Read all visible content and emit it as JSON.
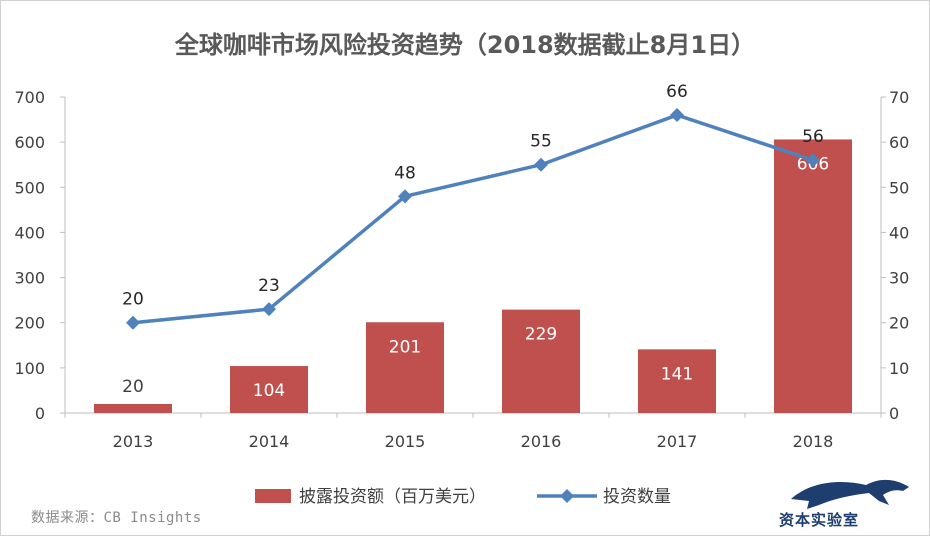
{
  "chart_data": {
    "type": "bar+line",
    "title": "全球咖啡市场风险投资趋势（2018数据截止8月1日）",
    "categories": [
      "2013",
      "2014",
      "2015",
      "2016",
      "2017",
      "2018"
    ],
    "series": [
      {
        "name": "披露投资额（百万美元）",
        "type": "bar",
        "axis": "left",
        "color": "#c0504d",
        "values": [
          20,
          104,
          201,
          229,
          141,
          606
        ]
      },
      {
        "name": "投资数量",
        "type": "line",
        "axis": "right",
        "color": "#4f81bd",
        "values": [
          20,
          23,
          48,
          55,
          66,
          56
        ]
      }
    ],
    "y_left": {
      "min": 0,
      "max": 700,
      "ticks": [
        0,
        100,
        200,
        300,
        400,
        500,
        600,
        700
      ]
    },
    "y_right": {
      "min": 0,
      "max": 70,
      "ticks": [
        0,
        10,
        20,
        30,
        40,
        50,
        60,
        70
      ]
    },
    "grid": false,
    "legend": "bottom"
  },
  "source": "数据来源：CB Insights",
  "logo_text": "资本实验室"
}
